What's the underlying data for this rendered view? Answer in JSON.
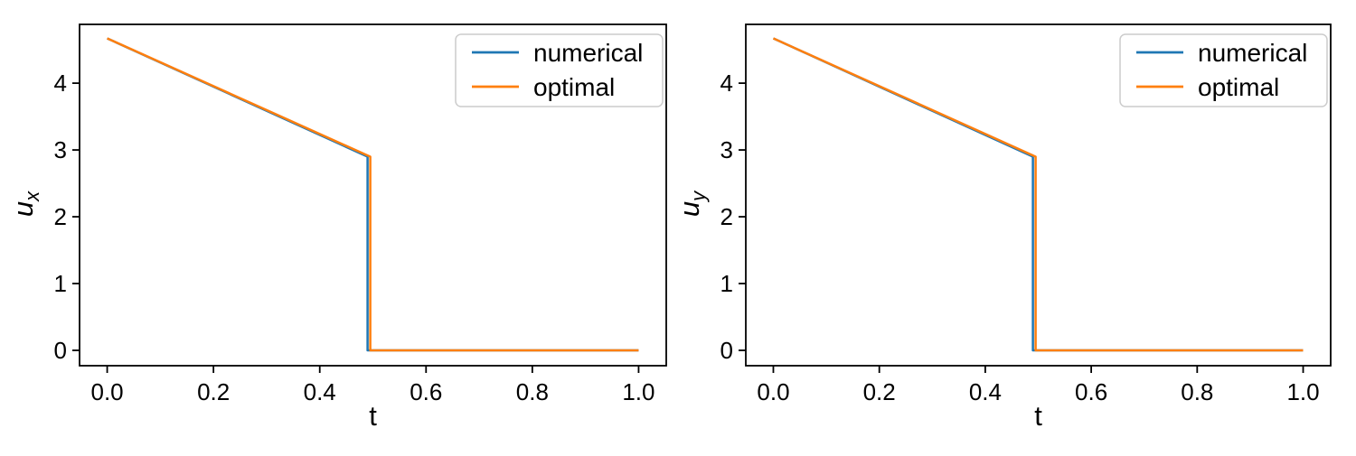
{
  "figure": {
    "background": "#ffffff",
    "spine_color": "#000000",
    "legend_border_color": "#cccccc",
    "legend_bg": "#ffffff"
  },
  "chart_data": [
    {
      "id": "ux",
      "type": "line",
      "title": "",
      "xlabel": "t",
      "ylabel": "u_x",
      "ylabel_base": "u",
      "ylabel_sub": "x",
      "xlim": [
        -0.052,
        1.052
      ],
      "ylim": [
        -0.23,
        4.88
      ],
      "xticks": [
        0.0,
        0.2,
        0.4,
        0.6,
        0.8,
        1.0
      ],
      "xtick_labels": [
        "0.0",
        "0.2",
        "0.4",
        "0.6",
        "0.8",
        "1.0"
      ],
      "yticks": [
        0,
        1,
        2,
        3,
        4
      ],
      "ytick_labels": [
        "0",
        "1",
        "2",
        "3",
        "4"
      ],
      "grid": false,
      "legend": {
        "position": "upper right",
        "entries": [
          "numerical",
          "optimal"
        ]
      },
      "series": [
        {
          "name": "numerical",
          "color": "#1f77b4",
          "points": [
            [
              0.0,
              4.67
            ],
            [
              0.49,
              2.9
            ],
            [
              0.49,
              0.0
            ],
            [
              1.0,
              0.0
            ]
          ]
        },
        {
          "name": "optimal",
          "color": "#ff7f0e",
          "points": [
            [
              0.0,
              4.67
            ],
            [
              0.495,
              2.9
            ],
            [
              0.495,
              0.0
            ],
            [
              1.0,
              0.0
            ]
          ]
        }
      ]
    },
    {
      "id": "uy",
      "type": "line",
      "title": "",
      "xlabel": "t",
      "ylabel": "u_y",
      "ylabel_base": "u",
      "ylabel_sub": "y",
      "xlim": [
        -0.052,
        1.052
      ],
      "ylim": [
        -0.23,
        4.88
      ],
      "xticks": [
        0.0,
        0.2,
        0.4,
        0.6,
        0.8,
        1.0
      ],
      "xtick_labels": [
        "0.0",
        "0.2",
        "0.4",
        "0.6",
        "0.8",
        "1.0"
      ],
      "yticks": [
        0,
        1,
        2,
        3,
        4
      ],
      "ytick_labels": [
        "0",
        "1",
        "2",
        "3",
        "4"
      ],
      "grid": false,
      "legend": {
        "position": "upper right",
        "entries": [
          "numerical",
          "optimal"
        ]
      },
      "series": [
        {
          "name": "numerical",
          "color": "#1f77b4",
          "points": [
            [
              0.0,
              4.67
            ],
            [
              0.49,
              2.9
            ],
            [
              0.49,
              0.0
            ],
            [
              1.0,
              0.0
            ]
          ]
        },
        {
          "name": "optimal",
          "color": "#ff7f0e",
          "points": [
            [
              0.0,
              4.67
            ],
            [
              0.495,
              2.9
            ],
            [
              0.495,
              0.0
            ],
            [
              1.0,
              0.0
            ]
          ]
        }
      ]
    }
  ]
}
